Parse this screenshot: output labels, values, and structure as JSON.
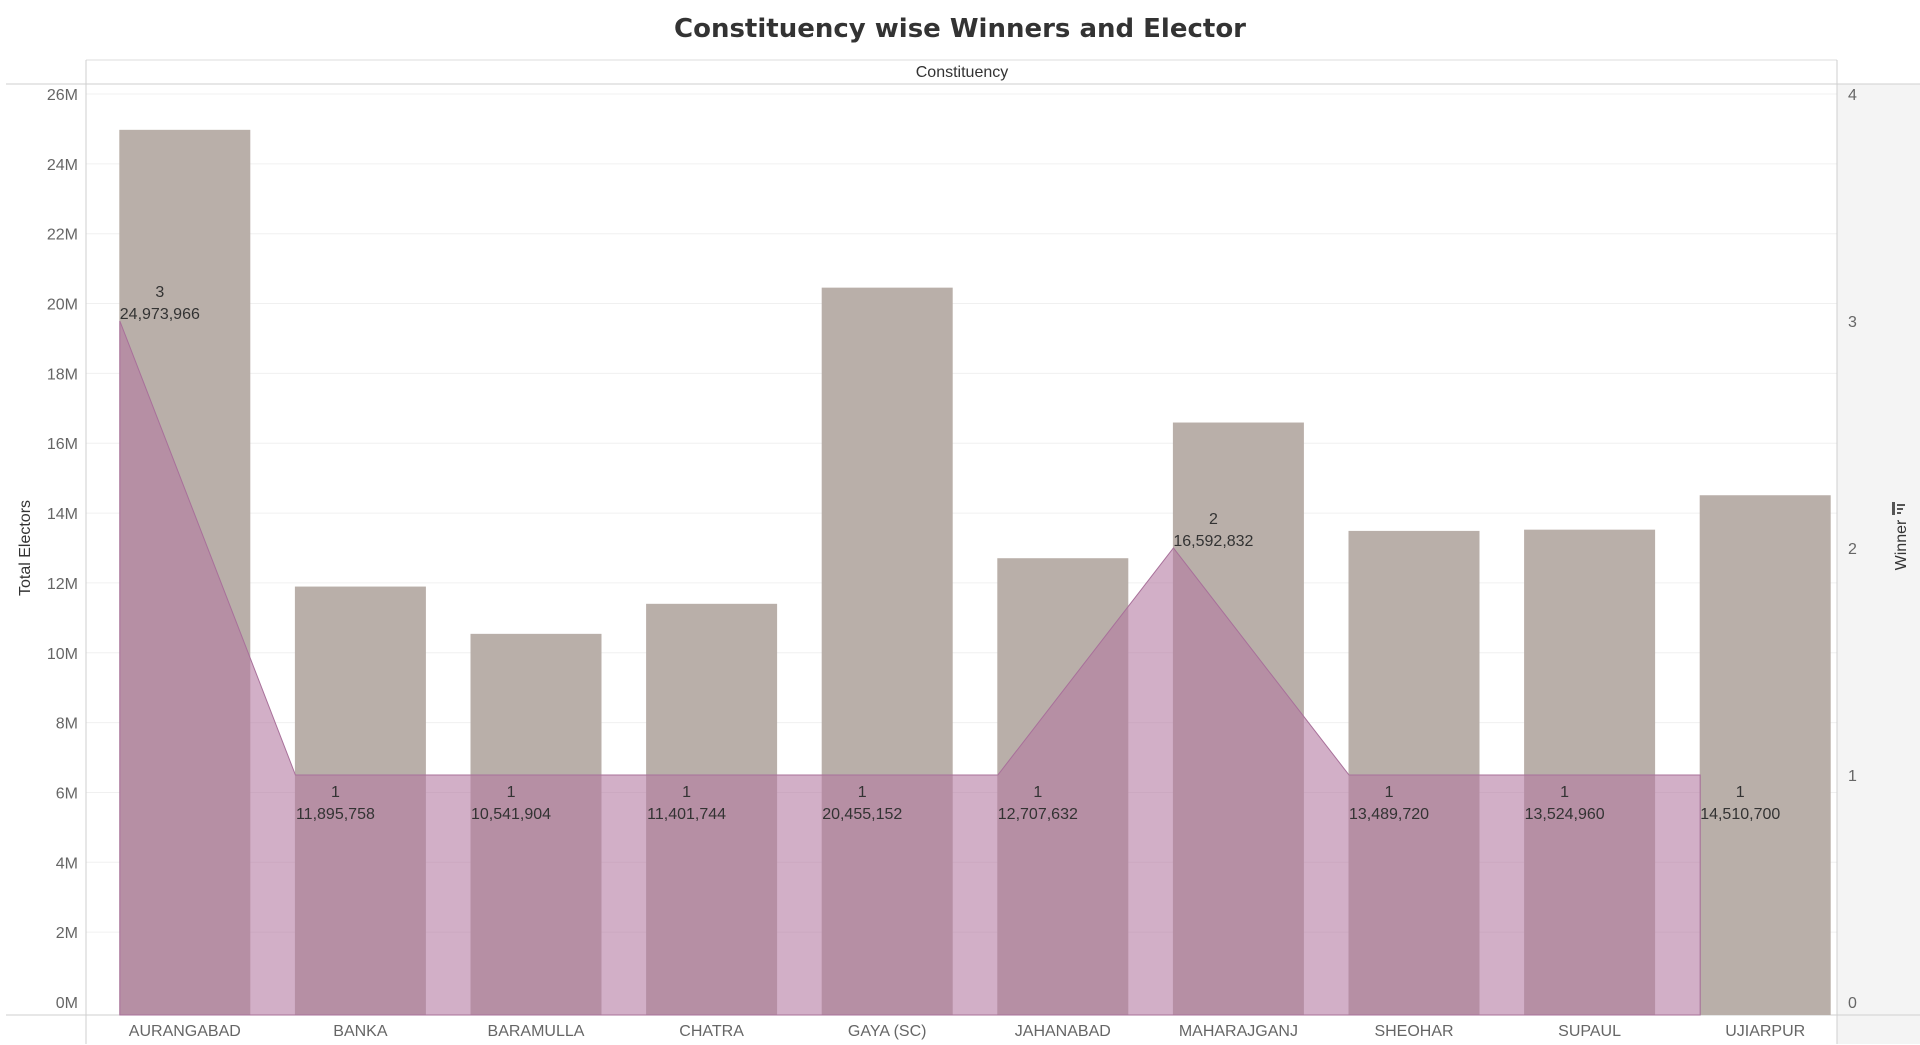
{
  "chart_data": {
    "type": "bar",
    "title": "Constituency wise Winners and Elector",
    "column_header": "Constituency",
    "categories": [
      "AURANGABAD",
      "BANKA",
      "BARAMULLA",
      "CHATRA",
      "GAYA (SC)",
      "JAHANABAD",
      "MAHARAJGANJ",
      "SHEOHAR",
      "SUPAUL",
      "UJIARPUR"
    ],
    "series": [
      {
        "name": "Total Electors",
        "mark": "bar",
        "axis": "left",
        "values": [
          24973966,
          11895758,
          10541904,
          11401744,
          20455152,
          12707632,
          16592832,
          13489720,
          13524960,
          14510700
        ],
        "color": "#b9afa9"
      },
      {
        "name": "Winner",
        "mark": "area",
        "axis": "right",
        "values": [
          3,
          1,
          1,
          1,
          1,
          1,
          2,
          1,
          1,
          1
        ],
        "color": "#b479a1"
      }
    ],
    "y_left": {
      "label": "Total Electors",
      "range": [
        0,
        26000000
      ],
      "ticks": [
        "0M",
        "2M",
        "4M",
        "6M",
        "8M",
        "10M",
        "12M",
        "14M",
        "16M",
        "18M",
        "20M",
        "22M",
        "24M",
        "26M"
      ]
    },
    "y_right": {
      "label": "Winner",
      "range": [
        0,
        4
      ],
      "ticks": [
        "0",
        "1",
        "2",
        "3",
        "4"
      ]
    },
    "data_labels": [
      {
        "count": "3",
        "electors": "24,973,966"
      },
      {
        "count": "1",
        "electors": "11,895,758"
      },
      {
        "count": "1",
        "electors": "10,541,904"
      },
      {
        "count": "1",
        "electors": "11,401,744"
      },
      {
        "count": "1",
        "electors": "20,455,152"
      },
      {
        "count": "1",
        "electors": "12,707,632"
      },
      {
        "count": "2",
        "electors": "16,592,832"
      },
      {
        "count": "1",
        "electors": "13,489,720"
      },
      {
        "count": "1",
        "electors": "13,524,960"
      },
      {
        "count": "1",
        "electors": "14,510,700"
      }
    ],
    "grid": true,
    "legend": "none"
  }
}
